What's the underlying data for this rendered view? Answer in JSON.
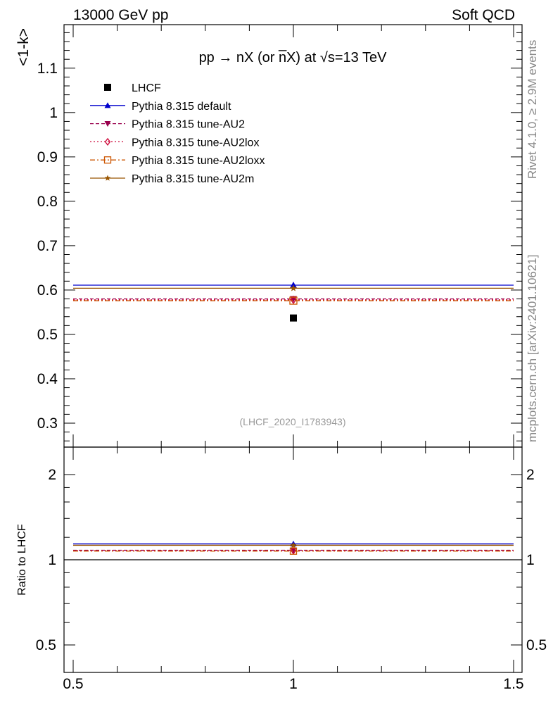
{
  "header": {
    "left": "13000 GeV pp",
    "right": "Soft QCD",
    "side_top": "Rivet 4.1.0, ≥ 2.9M events",
    "side_bottom": "mcplots.cern.ch [arXiv:2401.10621]"
  },
  "chart_data": {
    "type": "scatter",
    "title": "pp → nX (or n̅X) at √s=13 TeV",
    "watermark": "(LHCF_2020_I1783943)",
    "xlim": [
      0.5,
      1.5
    ],
    "x_ticks": [
      "0.5",
      "1",
      "1.5"
    ],
    "main": {
      "ylabel": "<1-k>",
      "ylim": [
        0.25,
        1.2
      ],
      "y_ticks": [
        "0.3",
        "0.4",
        "0.5",
        "0.6",
        "0.7",
        "0.8",
        "0.9",
        "1",
        "1.1"
      ]
    },
    "ratio": {
      "ylabel": "Ratio to LHCF",
      "ylim": [
        0.4,
        2.4
      ],
      "y_ticks_left": [
        "0.5",
        "1",
        "2"
      ],
      "y_ticks_right": [
        "0.5",
        "1",
        "2"
      ]
    },
    "series": [
      {
        "name": "LHCF",
        "marker": "square",
        "color": "#000000",
        "line": "none",
        "x": 1.0,
        "xlow": 0.5,
        "xhigh": 1.5,
        "y": 0.537,
        "ratio": 1.0
      },
      {
        "name": "Pythia 8.315 default",
        "marker": "triangle-up",
        "color": "#0000cc",
        "line": "solid",
        "x": 1.0,
        "xlow": 0.5,
        "xhigh": 1.5,
        "y": 0.611,
        "ratio": 1.138
      },
      {
        "name": "Pythia 8.315 tune-AU2",
        "marker": "triangle-down",
        "color": "#99004d",
        "line": "dashed",
        "x": 1.0,
        "xlow": 0.5,
        "xhigh": 1.5,
        "y": 0.58,
        "ratio": 1.08
      },
      {
        "name": "Pythia 8.315 tune-AU2lox",
        "marker": "diamond-open",
        "color": "#cc0033",
        "line": "dotted",
        "x": 1.0,
        "xlow": 0.5,
        "xhigh": 1.5,
        "y": 0.578,
        "ratio": 1.077
      },
      {
        "name": "Pythia 8.315 tune-AU2loxx",
        "marker": "square-open",
        "color": "#cc5500",
        "line": "dashdot",
        "x": 1.0,
        "xlow": 0.5,
        "xhigh": 1.5,
        "y": 0.576,
        "ratio": 1.073
      },
      {
        "name": "Pythia 8.315 tune-AU2m",
        "marker": "star",
        "color": "#995500",
        "line": "solid",
        "x": 1.0,
        "xlow": 0.5,
        "xhigh": 1.5,
        "y": 0.604,
        "ratio": 1.125
      }
    ]
  }
}
